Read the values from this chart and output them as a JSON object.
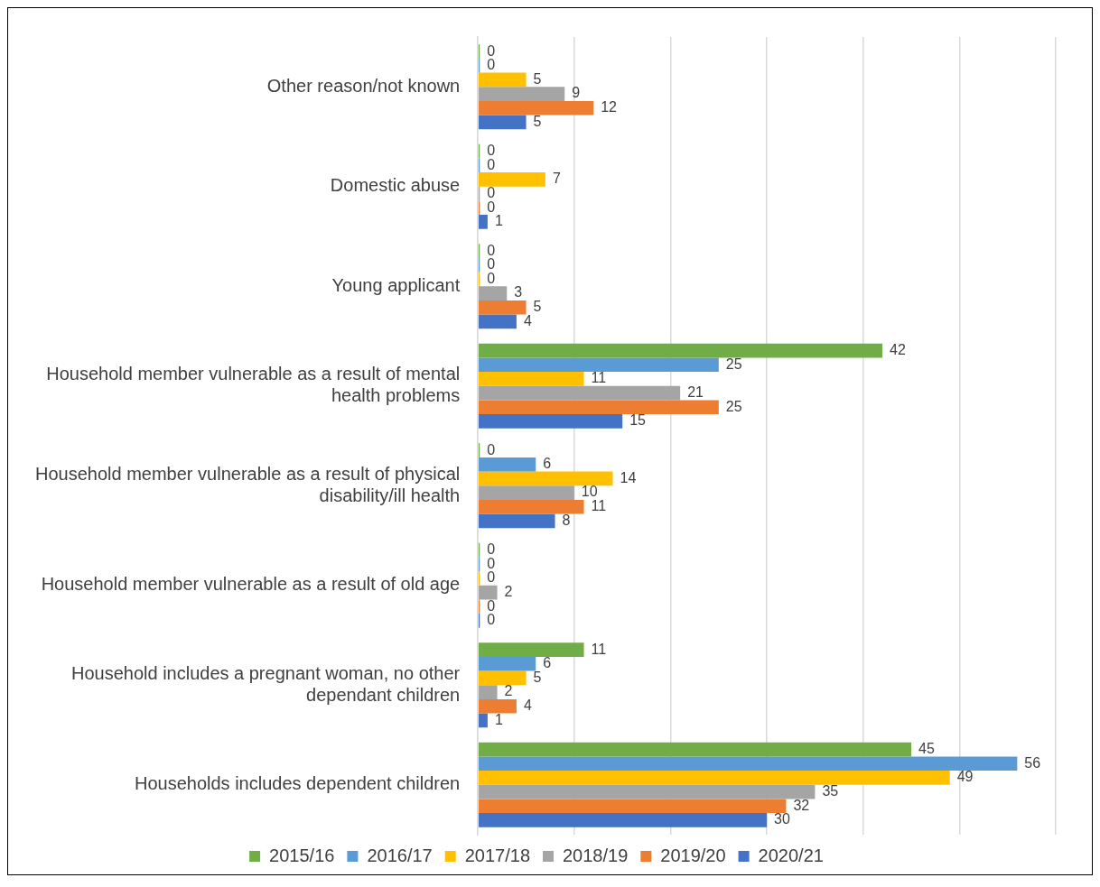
{
  "chart_data": {
    "type": "bar",
    "orientation": "horizontal",
    "categories": [
      "Other reason/not known",
      "Domestic abuse",
      "Young applicant",
      "Household member vulnerable as a result of mental health problems",
      "Household member vulnerable as a result of physical disability/ill health",
      "Household member vulnerable as a result of old age",
      "Household includes a pregnant woman, no other dependant children",
      "Households includes dependent children"
    ],
    "series": [
      {
        "name": "2015/16",
        "color": "#70ad47",
        "values": [
          0,
          0,
          0,
          42,
          0,
          0,
          11,
          45
        ]
      },
      {
        "name": "2016/17",
        "color": "#5b9bd5",
        "values": [
          0,
          0,
          0,
          25,
          6,
          0,
          6,
          56
        ]
      },
      {
        "name": "2017/18",
        "color": "#ffc000",
        "values": [
          5,
          7,
          0,
          11,
          14,
          0,
          5,
          49
        ]
      },
      {
        "name": "2018/19",
        "color": "#a5a5a5",
        "values": [
          9,
          0,
          3,
          21,
          10,
          2,
          2,
          35
        ]
      },
      {
        "name": "2019/20",
        "color": "#ed7d31",
        "values": [
          12,
          0,
          5,
          25,
          11,
          0,
          4,
          32
        ]
      },
      {
        "name": "2020/21",
        "color": "#4472c4",
        "values": [
          5,
          1,
          4,
          15,
          8,
          0,
          1,
          30
        ]
      }
    ],
    "xlim": [
      0,
      60
    ],
    "xticks": [
      {
        "value": 0,
        "label": null
      },
      {
        "value": 10,
        "label": null
      },
      {
        "value": 20,
        "label": null
      },
      {
        "value": 30,
        "label": null
      },
      {
        "value": 40,
        "label": null
      },
      {
        "value": 50,
        "label": null
      },
      {
        "value": 60,
        "label": null
      }
    ],
    "tick_labels": "y",
    "grid": "x",
    "legend": "bottom",
    "data_labels": true
  }
}
